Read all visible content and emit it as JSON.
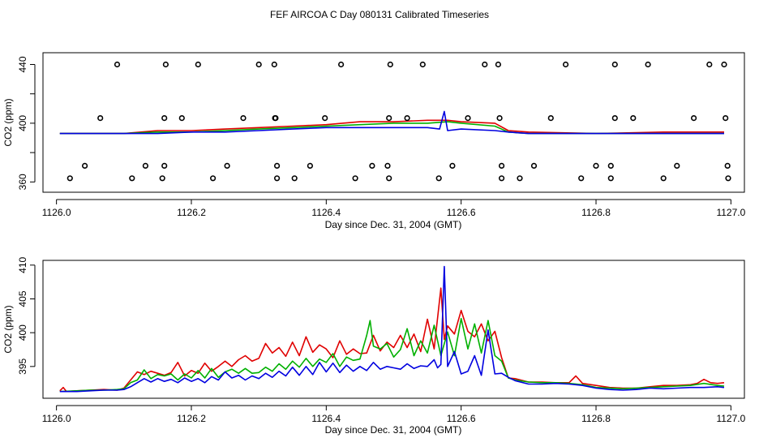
{
  "title": "FEF AIRCOA C  Day 080131  Calibrated Timeseries",
  "colors": {
    "series_a": "#e00000",
    "series_b": "#00b000",
    "series_c": "#0000e0",
    "points": "#000000"
  },
  "chart_data": [
    {
      "type": "scatter",
      "ylabel": "CO2 (ppm)",
      "xlabel": "Day since Dec. 31, 2004 (GMT)",
      "xlim": [
        1125.98,
        1127.02
      ],
      "ylim": [
        353,
        448
      ],
      "xticks": [
        1126.0,
        1126.2,
        1126.4,
        1126.6,
        1126.8,
        1127.0
      ],
      "xtick_labels": [
        "1126.0",
        "1126.2",
        "1126.4",
        "1126.6",
        "1126.8",
        "1127.0"
      ],
      "yticks": [
        360,
        380,
        400,
        420,
        440
      ],
      "ytick_labels": [
        "360",
        "",
        "400",
        "",
        "440"
      ],
      "points": [
        {
          "x": 1126.09,
          "y": 440
        },
        {
          "x": 1126.162,
          "y": 440
        },
        {
          "x": 1126.21,
          "y": 440
        },
        {
          "x": 1126.3,
          "y": 440
        },
        {
          "x": 1126.323,
          "y": 440
        },
        {
          "x": 1126.422,
          "y": 440
        },
        {
          "x": 1126.495,
          "y": 440
        },
        {
          "x": 1126.543,
          "y": 440
        },
        {
          "x": 1126.635,
          "y": 440
        },
        {
          "x": 1126.655,
          "y": 440
        },
        {
          "x": 1126.755,
          "y": 440
        },
        {
          "x": 1126.828,
          "y": 440
        },
        {
          "x": 1126.877,
          "y": 440
        },
        {
          "x": 1126.968,
          "y": 440
        },
        {
          "x": 1126.99,
          "y": 440
        },
        {
          "x": 1126.065,
          "y": 403.5
        },
        {
          "x": 1126.16,
          "y": 403.5
        },
        {
          "x": 1126.186,
          "y": 403.5
        },
        {
          "x": 1126.277,
          "y": 403.5
        },
        {
          "x": 1126.324,
          "y": 403.5
        },
        {
          "x": 1126.325,
          "y": 403.5
        },
        {
          "x": 1126.398,
          "y": 403.5
        },
        {
          "x": 1126.493,
          "y": 403.5
        },
        {
          "x": 1126.52,
          "y": 403.5
        },
        {
          "x": 1126.61,
          "y": 403.5
        },
        {
          "x": 1126.657,
          "y": 403.5
        },
        {
          "x": 1126.733,
          "y": 403.5
        },
        {
          "x": 1126.828,
          "y": 403.5
        },
        {
          "x": 1126.855,
          "y": 403.5
        },
        {
          "x": 1126.945,
          "y": 403.5
        },
        {
          "x": 1126.992,
          "y": 403.5
        },
        {
          "x": 1126.042,
          "y": 371
        },
        {
          "x": 1126.132,
          "y": 371
        },
        {
          "x": 1126.16,
          "y": 371
        },
        {
          "x": 1126.253,
          "y": 371
        },
        {
          "x": 1126.327,
          "y": 371
        },
        {
          "x": 1126.376,
          "y": 371
        },
        {
          "x": 1126.468,
          "y": 371
        },
        {
          "x": 1126.491,
          "y": 371
        },
        {
          "x": 1126.587,
          "y": 371
        },
        {
          "x": 1126.66,
          "y": 371
        },
        {
          "x": 1126.708,
          "y": 371
        },
        {
          "x": 1126.8,
          "y": 371
        },
        {
          "x": 1126.822,
          "y": 371
        },
        {
          "x": 1126.92,
          "y": 371
        },
        {
          "x": 1126.995,
          "y": 371
        },
        {
          "x": 1126.02,
          "y": 362.5
        },
        {
          "x": 1126.112,
          "y": 362.5
        },
        {
          "x": 1126.157,
          "y": 362.5
        },
        {
          "x": 1126.232,
          "y": 362.5
        },
        {
          "x": 1126.327,
          "y": 362.5
        },
        {
          "x": 1126.353,
          "y": 362.5
        },
        {
          "x": 1126.443,
          "y": 362.5
        },
        {
          "x": 1126.493,
          "y": 362.5
        },
        {
          "x": 1126.567,
          "y": 362.5
        },
        {
          "x": 1126.66,
          "y": 362.5
        },
        {
          "x": 1126.687,
          "y": 362.5
        },
        {
          "x": 1126.778,
          "y": 362.5
        },
        {
          "x": 1126.822,
          "y": 362.5
        },
        {
          "x": 1126.9,
          "y": 362.5
        },
        {
          "x": 1126.996,
          "y": 362.5
        }
      ],
      "series": [
        {
          "name": "red",
          "color": "#e00000",
          "x": [
            1126.005,
            1126.05,
            1126.1,
            1126.15,
            1126.2,
            1126.25,
            1126.3,
            1126.35,
            1126.4,
            1126.45,
            1126.5,
            1126.55,
            1126.58,
            1126.6,
            1126.65,
            1126.67,
            1126.7,
            1126.8,
            1126.9,
            1126.99
          ],
          "values": [
            393,
            393,
            393,
            395,
            395,
            396,
            397,
            398,
            399,
            401,
            401,
            402,
            402,
            401,
            400,
            395,
            394,
            393,
            394,
            394
          ]
        },
        {
          "name": "green",
          "color": "#00b000",
          "x": [
            1126.005,
            1126.05,
            1126.1,
            1126.15,
            1126.2,
            1126.25,
            1126.3,
            1126.35,
            1126.4,
            1126.45,
            1126.5,
            1126.55,
            1126.58,
            1126.6,
            1126.65,
            1126.67,
            1126.7,
            1126.8,
            1126.9,
            1126.99
          ],
          "values": [
            393,
            393,
            393,
            394,
            394,
            395,
            396,
            397,
            398,
            399,
            400,
            400,
            401,
            400,
            398,
            394,
            393,
            393,
            393,
            393
          ]
        },
        {
          "name": "blue",
          "color": "#0000e0",
          "x": [
            1126.005,
            1126.05,
            1126.1,
            1126.15,
            1126.2,
            1126.25,
            1126.3,
            1126.35,
            1126.4,
            1126.45,
            1126.5,
            1126.55,
            1126.568,
            1126.575,
            1126.58,
            1126.6,
            1126.65,
            1126.67,
            1126.7,
            1126.8,
            1126.9,
            1126.99
          ],
          "values": [
            393,
            393,
            393,
            393,
            394,
            394,
            395,
            396,
            397,
            397,
            397,
            397,
            396,
            408,
            395,
            396,
            395,
            394,
            393,
            393,
            393,
            393
          ]
        }
      ]
    },
    {
      "type": "line",
      "ylabel": "CO2 (ppm)",
      "xlabel": "Day since Dec. 31, 2004 (GMT)",
      "xlim": [
        1125.98,
        1127.02
      ],
      "ylim": [
        390.3,
        410.7
      ],
      "xticks": [
        1126.0,
        1126.2,
        1126.4,
        1126.6,
        1126.8,
        1127.0
      ],
      "xtick_labels": [
        "1126.0",
        "1126.2",
        "1126.4",
        "1126.6",
        "1126.8",
        "1127.0"
      ],
      "yticks": [
        395,
        400,
        405,
        410
      ],
      "ytick_labels": [
        "395",
        "400",
        "405",
        "410"
      ],
      "series": [
        {
          "name": "red",
          "color": "#e00000",
          "x": [
            1126.005,
            1126.01,
            1126.015,
            1126.03,
            1126.05,
            1126.07,
            1126.09,
            1126.1,
            1126.11,
            1126.12,
            1126.13,
            1126.14,
            1126.15,
            1126.16,
            1126.17,
            1126.18,
            1126.19,
            1126.2,
            1126.21,
            1126.22,
            1126.23,
            1126.24,
            1126.25,
            1126.26,
            1126.27,
            1126.28,
            1126.29,
            1126.3,
            1126.31,
            1126.32,
            1126.33,
            1126.34,
            1126.35,
            1126.36,
            1126.37,
            1126.38,
            1126.39,
            1126.4,
            1126.41,
            1126.42,
            1126.43,
            1126.44,
            1126.45,
            1126.46,
            1126.47,
            1126.48,
            1126.49,
            1126.5,
            1126.51,
            1126.52,
            1126.53,
            1126.54,
            1126.55,
            1126.56,
            1126.57,
            1126.575,
            1126.58,
            1126.59,
            1126.6,
            1126.61,
            1126.62,
            1126.63,
            1126.64,
            1126.65,
            1126.66,
            1126.67,
            1126.68,
            1126.7,
            1126.72,
            1126.74,
            1126.76,
            1126.77,
            1126.78,
            1126.8,
            1126.82,
            1126.84,
            1126.86,
            1126.88,
            1126.9,
            1126.92,
            1126.94,
            1126.95,
            1126.96,
            1126.97,
            1126.98,
            1126.99
          ],
          "values": [
            391.4,
            391.9,
            391.3,
            391.4,
            391.5,
            391.6,
            391.5,
            391.8,
            393.0,
            394.2,
            393.8,
            394.3,
            394.0,
            393.7,
            394.1,
            395.6,
            393.6,
            394.4,
            394.0,
            395.5,
            394.3,
            395.0,
            395.8,
            395.0,
            396.0,
            396.6,
            395.8,
            396.2,
            398.4,
            397.0,
            397.8,
            396.5,
            398.6,
            396.6,
            399.4,
            397.1,
            398.2,
            397.6,
            396.3,
            398.8,
            396.8,
            397.6,
            396.9,
            397.0,
            399.6,
            397.3,
            398.6,
            397.8,
            399.6,
            397.8,
            399.8,
            397.2,
            402.0,
            397.6,
            406.6,
            399.0,
            401.0,
            399.8,
            403.3,
            400.2,
            399.4,
            401.3,
            398.8,
            400.2,
            396.3,
            393.3,
            393.2,
            392.7,
            392.7,
            392.6,
            392.6,
            393.6,
            392.5,
            392.2,
            391.9,
            391.8,
            391.8,
            392.0,
            392.2,
            392.2,
            392.3,
            392.5,
            393.1,
            392.6,
            392.5,
            392.6
          ]
        },
        {
          "name": "green",
          "color": "#00b000",
          "x": [
            1126.005,
            1126.03,
            1126.05,
            1126.07,
            1126.09,
            1126.1,
            1126.11,
            1126.12,
            1126.13,
            1126.14,
            1126.15,
            1126.16,
            1126.17,
            1126.18,
            1126.19,
            1126.2,
            1126.21,
            1126.22,
            1126.23,
            1126.24,
            1126.25,
            1126.26,
            1126.27,
            1126.28,
            1126.29,
            1126.3,
            1126.31,
            1126.32,
            1126.33,
            1126.34,
            1126.35,
            1126.36,
            1126.37,
            1126.38,
            1126.39,
            1126.4,
            1126.41,
            1126.42,
            1126.43,
            1126.44,
            1126.45,
            1126.46,
            1126.465,
            1126.47,
            1126.48,
            1126.49,
            1126.5,
            1126.51,
            1126.52,
            1126.53,
            1126.54,
            1126.55,
            1126.56,
            1126.57,
            1126.58,
            1126.59,
            1126.6,
            1126.61,
            1126.62,
            1126.63,
            1126.64,
            1126.65,
            1126.66,
            1126.67,
            1126.68,
            1126.7,
            1126.72,
            1126.74,
            1126.76,
            1126.78,
            1126.8,
            1126.82,
            1126.84,
            1126.86,
            1126.88,
            1126.9,
            1126.92,
            1126.94,
            1126.96,
            1126.98,
            1126.99
          ],
          "values": [
            391.3,
            391.4,
            391.5,
            391.5,
            391.6,
            391.7,
            392.6,
            393.0,
            394.5,
            393.2,
            393.8,
            393.6,
            393.9,
            393.0,
            393.9,
            393.3,
            394.4,
            393.3,
            394.7,
            393.4,
            394.2,
            394.6,
            394.0,
            394.7,
            394.0,
            394.1,
            394.9,
            394.3,
            395.4,
            394.6,
            395.8,
            394.9,
            396.2,
            395.0,
            396.1,
            395.6,
            396.9,
            395.0,
            396.4,
            395.9,
            396.1,
            399.6,
            401.8,
            398.0,
            397.6,
            398.4,
            396.4,
            397.5,
            400.6,
            396.6,
            398.8,
            397.0,
            401.1,
            396.6,
            400.1,
            396.6,
            402.1,
            397.6,
            401.3,
            397.0,
            401.8,
            396.6,
            395.8,
            393.3,
            393.0,
            392.7,
            392.6,
            392.6,
            392.5,
            392.3,
            391.9,
            391.8,
            391.7,
            391.8,
            391.9,
            392.0,
            392.1,
            392.2,
            392.5,
            392.2,
            392.1
          ]
        },
        {
          "name": "blue",
          "color": "#0000e0",
          "x": [
            1126.005,
            1126.03,
            1126.05,
            1126.07,
            1126.09,
            1126.1,
            1126.11,
            1126.12,
            1126.13,
            1126.14,
            1126.15,
            1126.16,
            1126.17,
            1126.18,
            1126.19,
            1126.2,
            1126.21,
            1126.22,
            1126.23,
            1126.24,
            1126.25,
            1126.26,
            1126.27,
            1126.28,
            1126.29,
            1126.3,
            1126.31,
            1126.32,
            1126.33,
            1126.34,
            1126.35,
            1126.36,
            1126.37,
            1126.38,
            1126.39,
            1126.4,
            1126.41,
            1126.42,
            1126.43,
            1126.44,
            1126.45,
            1126.46,
            1126.47,
            1126.48,
            1126.49,
            1126.5,
            1126.51,
            1126.52,
            1126.53,
            1126.54,
            1126.55,
            1126.56,
            1126.565,
            1126.57,
            1126.575,
            1126.58,
            1126.59,
            1126.6,
            1126.61,
            1126.62,
            1126.63,
            1126.64,
            1126.65,
            1126.66,
            1126.67,
            1126.68,
            1126.7,
            1126.72,
            1126.74,
            1126.76,
            1126.78,
            1126.8,
            1126.82,
            1126.84,
            1126.86,
            1126.88,
            1126.9,
            1126.92,
            1126.94,
            1126.96,
            1126.98,
            1126.99
          ],
          "values": [
            391.3,
            391.3,
            391.4,
            391.5,
            391.5,
            391.6,
            392.0,
            392.6,
            393.2,
            392.7,
            393.2,
            392.8,
            393.1,
            392.6,
            393.3,
            392.8,
            393.2,
            392.6,
            393.5,
            393.0,
            394.2,
            393.3,
            393.7,
            393.0,
            393.6,
            393.2,
            394.0,
            393.4,
            394.3,
            393.6,
            394.9,
            393.7,
            395.0,
            393.8,
            395.6,
            394.2,
            395.5,
            394.1,
            395.2,
            394.3,
            395.0,
            394.4,
            395.6,
            394.6,
            395.0,
            394.8,
            394.6,
            395.4,
            394.7,
            395.1,
            395.0,
            396.0,
            394.8,
            395.3,
            409.8,
            395.0,
            397.2,
            393.9,
            394.3,
            396.6,
            393.7,
            400.4,
            393.9,
            394.0,
            393.4,
            392.9,
            392.4,
            392.4,
            392.5,
            392.4,
            392.2,
            391.8,
            391.6,
            391.5,
            391.6,
            391.8,
            391.7,
            391.8,
            391.9,
            391.9,
            392.0,
            391.9
          ]
        }
      ]
    }
  ]
}
